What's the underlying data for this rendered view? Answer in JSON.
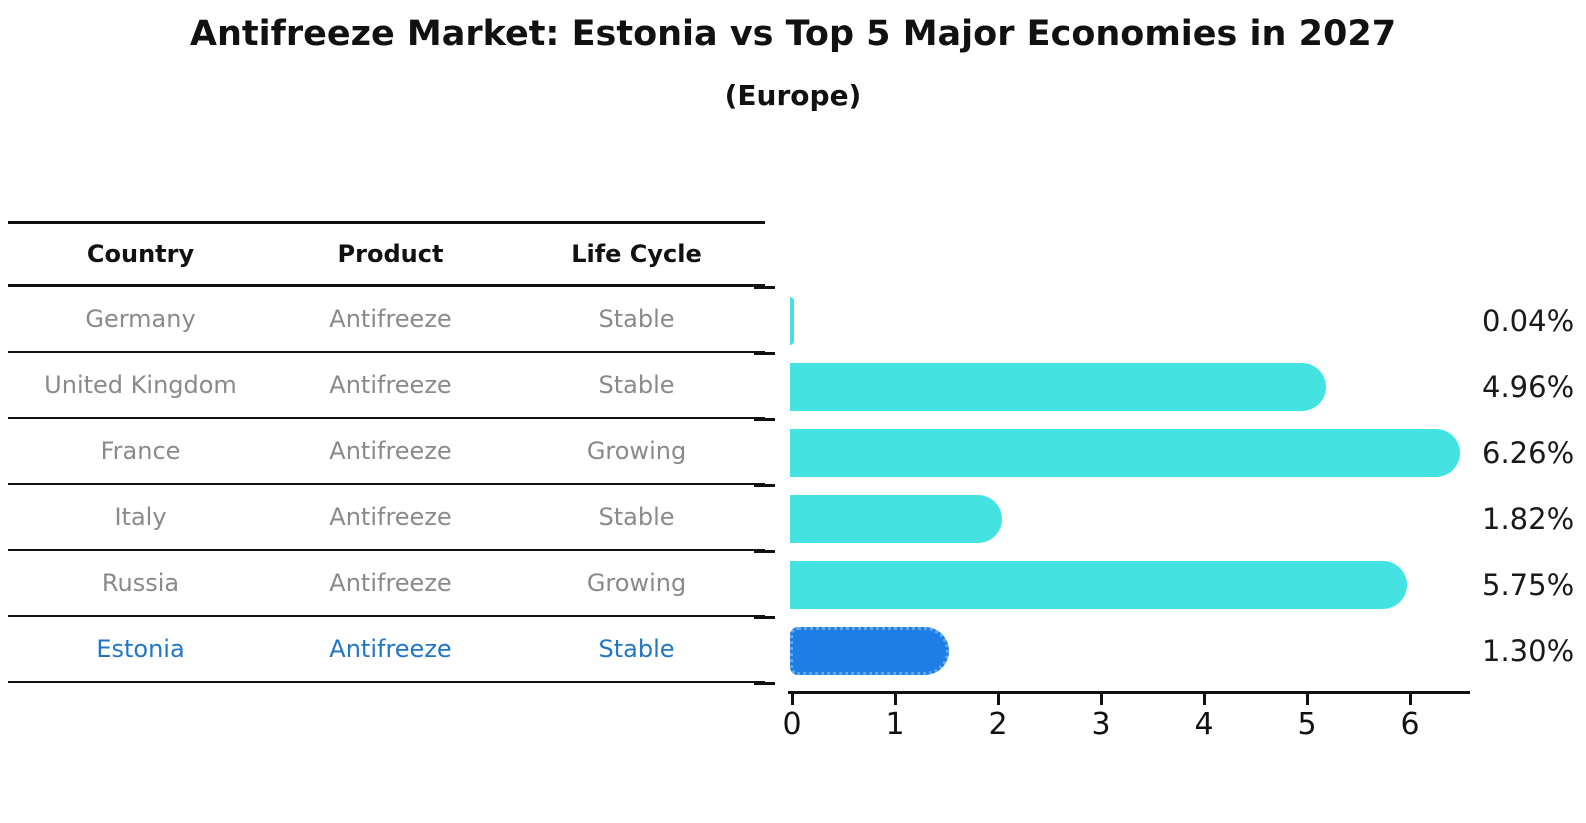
{
  "title": "Antifreeze Market: Estonia vs Top 5 Major Economies in 2027",
  "subtitle": "(Europe)",
  "table": {
    "headers": [
      "Country",
      "Product",
      "Life Cycle"
    ],
    "rows": [
      {
        "country": "Germany",
        "product": "Antifreeze",
        "life_cycle": "Stable"
      },
      {
        "country": "United Kingdom",
        "product": "Antifreeze",
        "life_cycle": "Stable"
      },
      {
        "country": "France",
        "product": "Antifreeze",
        "life_cycle": "Growing"
      },
      {
        "country": "Italy",
        "product": "Antifreeze",
        "life_cycle": "Stable"
      },
      {
        "country": "Russia",
        "product": "Antifreeze",
        "life_cycle": "Growing"
      },
      {
        "country": "Estonia",
        "product": "Antifreeze",
        "life_cycle": "Stable"
      }
    ],
    "highlighted_row": "Estonia"
  },
  "chart_data": {
    "type": "bar",
    "orientation": "horizontal",
    "categories": [
      "Germany",
      "United Kingdom",
      "France",
      "Italy",
      "Russia",
      "Estonia"
    ],
    "values": [
      0.04,
      4.96,
      6.26,
      1.82,
      5.75,
      1.3
    ],
    "value_labels": [
      "0.04%",
      "4.96%",
      "6.26%",
      "1.82%",
      "5.75%",
      "1.30%"
    ],
    "x_ticks": [
      "0",
      "1",
      "2",
      "3",
      "4",
      "5",
      "6"
    ],
    "xlim": [
      0,
      6.57
    ],
    "grid": false,
    "legend": false,
    "highlight_index": 5,
    "bar_color": "#45e2e2",
    "highlight_color": "#1e7ee6",
    "highlight_border_color": "#60a8f0"
  },
  "colors": {
    "row_text": "#8a8a8a",
    "highlight_text": "#2176c7",
    "axis": "#111111",
    "value_label": "#1a1a1a"
  }
}
